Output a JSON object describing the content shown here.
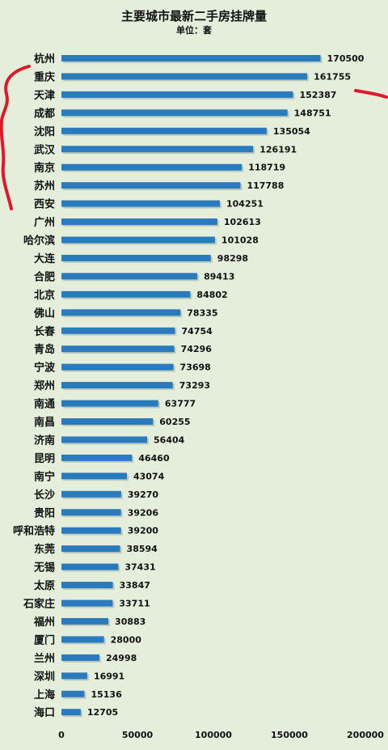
{
  "chart_data": {
    "type": "bar",
    "orientation": "horizontal",
    "title": "主要城市最新二手房挂牌量",
    "subtitle": "单位：套",
    "categories": [
      "杭州",
      "重庆",
      "天津",
      "成都",
      "沈阳",
      "武汉",
      "南京",
      "苏州",
      "西安",
      "广州",
      "哈尔滨",
      "大连",
      "合肥",
      "北京",
      "佛山",
      "长春",
      "青岛",
      "宁波",
      "郑州",
      "南通",
      "南昌",
      "济南",
      "昆明",
      "南宁",
      "长沙",
      "贵阳",
      "呼和浩特",
      "东莞",
      "无锡",
      "太原",
      "石家庄",
      "福州",
      "厦门",
      "兰州",
      "深圳",
      "上海",
      "海口"
    ],
    "values": [
      170500,
      161755,
      152387,
      148751,
      135054,
      126191,
      118719,
      117788,
      104251,
      102613,
      101028,
      98298,
      89413,
      84802,
      78335,
      74754,
      74296,
      73698,
      73293,
      63777,
      60255,
      56404,
      46460,
      43074,
      39270,
      39206,
      39200,
      38594,
      37431,
      33847,
      33711,
      30883,
      28000,
      24998,
      16991,
      15136,
      12705
    ],
    "xlim": [
      0,
      200000
    ],
    "xticks": [
      "0",
      "50000",
      "100000",
      "150000",
      "200000"
    ],
    "bar_color": "#2a7bbd",
    "annotation_color": "#e0182c",
    "grid": false,
    "legend": "none"
  }
}
